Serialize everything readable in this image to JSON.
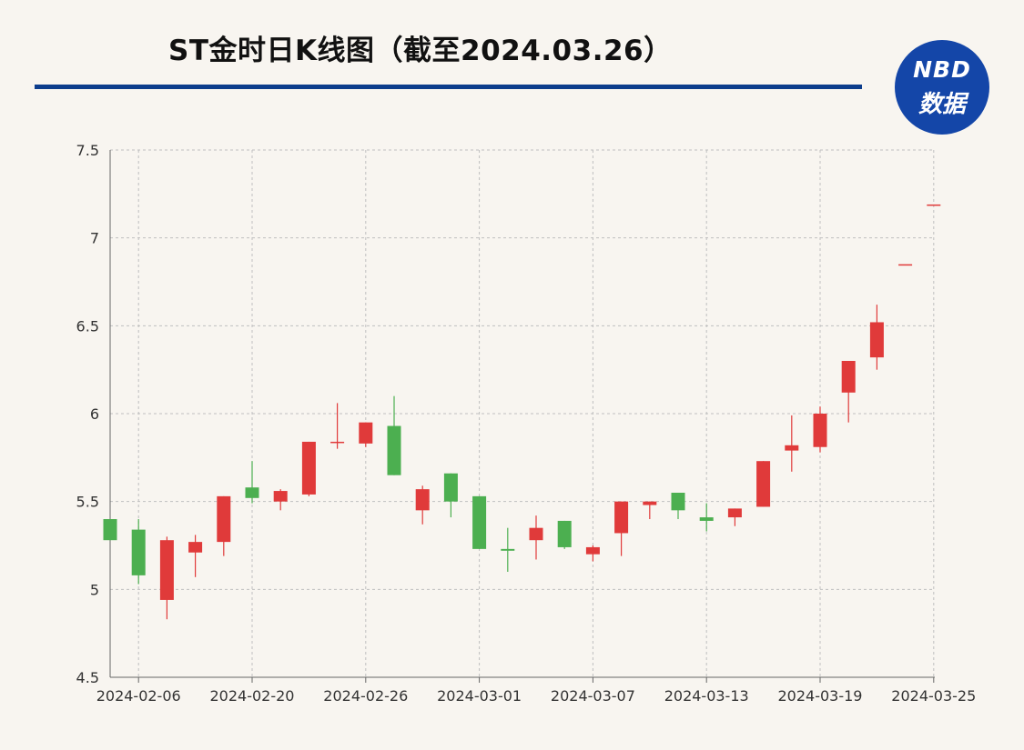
{
  "title": "ST金时日K线图（截至2024.03.26）",
  "logo": {
    "line1": "NBD",
    "line2": "数据"
  },
  "colors": {
    "up": "#e03a3a",
    "down": "#4caf50",
    "grid": "#bfbfbf",
    "title_rule": "#0d3d8c",
    "logo_bg": "#1446a8"
  },
  "chart_data": {
    "type": "candlestick",
    "title": "ST金时日K线图（截至2024.03.26）",
    "ylim": [
      4.5,
      7.5
    ],
    "y_ticks": [
      "4.5",
      "5",
      "5.5",
      "6",
      "6.5",
      "7",
      "7.5"
    ],
    "x_tick_labels": [
      "2024-02-06",
      "2024-02-20",
      "2024-02-26",
      "2024-03-01",
      "2024-03-07",
      "2024-03-13",
      "2024-03-19",
      "2024-03-25"
    ],
    "grid": true,
    "candles": [
      {
        "date": "2024-02-05",
        "open": 5.4,
        "high": 5.4,
        "low": 5.28,
        "close": 5.28
      },
      {
        "date": "2024-02-06",
        "open": 5.34,
        "high": 5.4,
        "low": 5.03,
        "close": 5.08
      },
      {
        "date": "2024-02-07",
        "open": 4.94,
        "high": 5.3,
        "low": 4.83,
        "close": 5.28
      },
      {
        "date": "2024-02-08",
        "open": 5.21,
        "high": 5.31,
        "low": 5.07,
        "close": 5.27
      },
      {
        "date": "2024-02-19",
        "open": 5.27,
        "high": 5.53,
        "low": 5.19,
        "close": 5.53
      },
      {
        "date": "2024-02-20",
        "open": 5.58,
        "high": 5.73,
        "low": 5.49,
        "close": 5.52
      },
      {
        "date": "2024-02-21",
        "open": 5.5,
        "high": 5.57,
        "low": 5.45,
        "close": 5.56
      },
      {
        "date": "2024-02-22",
        "open": 5.54,
        "high": 5.84,
        "low": 5.53,
        "close": 5.84
      },
      {
        "date": "2024-02-23",
        "open": 5.84,
        "high": 6.06,
        "low": 5.8,
        "close": 5.84
      },
      {
        "date": "2024-02-26",
        "open": 5.83,
        "high": 5.95,
        "low": 5.81,
        "close": 5.95
      },
      {
        "date": "2024-02-27",
        "open": 5.93,
        "high": 6.1,
        "low": 5.65,
        "close": 5.65
      },
      {
        "date": "2024-02-28",
        "open": 5.45,
        "high": 5.59,
        "low": 5.37,
        "close": 5.57
      },
      {
        "date": "2024-02-29",
        "open": 5.66,
        "high": 5.66,
        "low": 5.41,
        "close": 5.5
      },
      {
        "date": "2024-03-01",
        "open": 5.53,
        "high": 5.53,
        "low": 5.23,
        "close": 5.23
      },
      {
        "date": "2024-03-04",
        "open": 5.23,
        "high": 5.35,
        "low": 5.1,
        "close": 5.22
      },
      {
        "date": "2024-03-05",
        "open": 5.28,
        "high": 5.42,
        "low": 5.17,
        "close": 5.35
      },
      {
        "date": "2024-03-06",
        "open": 5.39,
        "high": 5.39,
        "low": 5.23,
        "close": 5.24
      },
      {
        "date": "2024-03-07",
        "open": 5.2,
        "high": 5.25,
        "low": 5.16,
        "close": 5.24
      },
      {
        "date": "2024-03-08",
        "open": 5.32,
        "high": 5.5,
        "low": 5.19,
        "close": 5.5
      },
      {
        "date": "2024-03-11",
        "open": 5.48,
        "high": 5.5,
        "low": 5.4,
        "close": 5.5
      },
      {
        "date": "2024-03-12",
        "open": 5.55,
        "high": 5.55,
        "low": 5.4,
        "close": 5.45
      },
      {
        "date": "2024-03-13",
        "open": 5.41,
        "high": 5.49,
        "low": 5.33,
        "close": 5.39
      },
      {
        "date": "2024-03-14",
        "open": 5.41,
        "high": 5.46,
        "low": 5.36,
        "close": 5.46
      },
      {
        "date": "2024-03-15",
        "open": 5.47,
        "high": 5.73,
        "low": 5.47,
        "close": 5.73
      },
      {
        "date": "2024-03-18",
        "open": 5.79,
        "high": 5.99,
        "low": 5.67,
        "close": 5.82
      },
      {
        "date": "2024-03-19",
        "open": 5.81,
        "high": 6.04,
        "low": 5.78,
        "close": 6.0
      },
      {
        "date": "2024-03-20",
        "open": 6.12,
        "high": 6.3,
        "low": 5.95,
        "close": 6.3
      },
      {
        "date": "2024-03-21",
        "open": 6.32,
        "high": 6.62,
        "low": 6.25,
        "close": 6.52
      },
      {
        "date": "2024-03-22",
        "open": 6.85,
        "high": 6.85,
        "low": 6.85,
        "close": 6.85
      },
      {
        "date": "2024-03-25",
        "open": 7.19,
        "high": 7.19,
        "low": 7.19,
        "close": 7.19
      }
    ]
  }
}
